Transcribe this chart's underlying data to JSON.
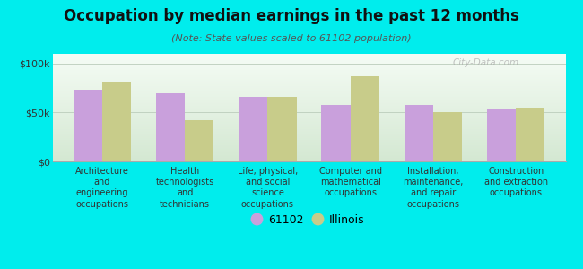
{
  "title": "Occupation by median earnings in the past 12 months",
  "subtitle": "(Note: State values scaled to 61102 population)",
  "categories": [
    "Architecture\nand\nengineering\noccupations",
    "Health\ntechnologists\nand\ntechnicians",
    "Life, physical,\nand social\nscience\noccupations",
    "Computer and\nmathematical\noccupations",
    "Installation,\nmaintenance,\nand repair\noccupations",
    "Construction\nand extraction\noccupations"
  ],
  "values_61102": [
    73000,
    70000,
    66000,
    58000,
    58000,
    53000
  ],
  "values_illinois": [
    82000,
    42000,
    66000,
    87000,
    50000,
    55000
  ],
  "color_61102": "#c9a0dc",
  "color_illinois": "#c8cc8a",
  "background_color": "#00eded",
  "plot_bg_top": "#d4e8d0",
  "plot_bg_bottom": "#f5faf5",
  "ylim": [
    0,
    110000
  ],
  "yticks": [
    0,
    50000,
    100000
  ],
  "ytick_labels": [
    "$0",
    "$50k",
    "$100k"
  ],
  "legend_label_61102": "61102",
  "legend_label_illinois": "Illinois",
  "watermark": "City-Data.com"
}
